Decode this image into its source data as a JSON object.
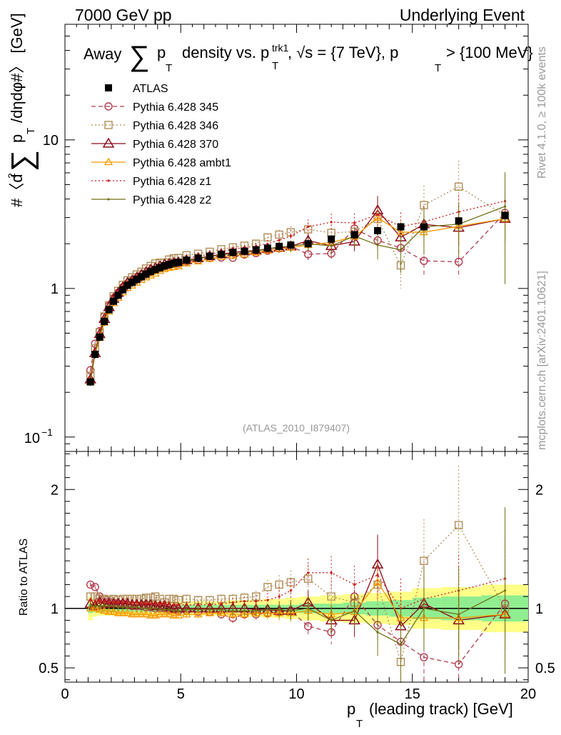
{
  "header": {
    "left": "7000 GeV pp",
    "right": "Underlying Event"
  },
  "side": {
    "rivet": "Rivet 4.1.0, ≥ 100k events",
    "mcplots": "mcplots.cern.ch [arXiv:2401.10621]"
  },
  "watermark": "(ATLAS_2010_I879407)",
  "colors": {
    "atlas": "#000000",
    "p345": "#b03a4e",
    "p346": "#b08d57",
    "p370": "#8b0a1a",
    "ambt1": "#f59a00",
    "z1": "#cc1a1a",
    "z2": "#727216",
    "band_inner": "#90ee90",
    "band_outer": "#ffff88"
  },
  "chart_data": {
    "type": "scatter",
    "title_parts": {
      "a": "Away",
      "b": "p",
      "c": "T",
      "d": "density vs. p",
      "e": "trk1",
      "f": ", √s = {7 TeV}, p",
      "g": "> {100 MeV}"
    },
    "xlabel": "p_T (leading track) [GeV]",
    "xlabel_main": "p",
    "xlabel_sub": "T",
    "xlabel_rest": "(leading track) [GeV]",
    "ylabel_parts": {
      "a": "#〈d",
      "b": "2",
      "c": "p",
      "d": "T",
      "e": "/dηdφ#〉 [GeV]"
    },
    "ratio_ylabel": "Ratio to ATLAS",
    "xlim": [
      0,
      20
    ],
    "ylim": [
      0.08,
      60
    ],
    "ratio_ylim": [
      0.38,
      2.32
    ],
    "x_ticks": [
      "0",
      "5",
      "10",
      "15",
      "20"
    ],
    "y_ticks": {
      "ten": "10",
      "one": "1",
      "tenth_base": "10",
      "tenth_exp": "−1"
    },
    "ratio_ticks": [
      "0.5",
      "1",
      "2"
    ],
    "x": [
      1.1,
      1.3,
      1.5,
      1.7,
      1.9,
      2.1,
      2.3,
      2.5,
      2.7,
      2.9,
      3.1,
      3.3,
      3.5,
      3.7,
      3.9,
      4.1,
      4.3,
      4.5,
      4.7,
      4.9,
      5.25,
      5.75,
      6.25,
      6.75,
      7.25,
      7.75,
      8.25,
      8.75,
      9.25,
      9.75,
      10.5,
      11.5,
      12.5,
      13.5,
      14.5,
      15.5,
      17.0,
      19.0
    ],
    "series": [
      {
        "name": "ATLAS",
        "key": "atlas",
        "style": "data",
        "values": [
          0.235,
          0.36,
          0.47,
          0.6,
          0.72,
          0.82,
          0.9,
          0.98,
          1.05,
          1.1,
          1.15,
          1.2,
          1.25,
          1.3,
          1.34,
          1.38,
          1.42,
          1.45,
          1.48,
          1.5,
          1.55,
          1.6,
          1.65,
          1.7,
          1.75,
          1.78,
          1.82,
          1.87,
          1.92,
          1.96,
          2.0,
          2.15,
          2.3,
          2.45,
          2.6,
          2.6,
          2.85,
          3.1
        ],
        "band_inner": [
          0.96,
          0.97,
          0.97,
          0.97,
          0.97,
          0.97,
          0.97,
          0.97,
          0.97,
          0.97,
          0.97,
          0.97,
          0.97,
          0.97,
          0.97,
          0.97,
          0.97,
          0.97,
          0.97,
          0.97,
          0.97,
          0.97,
          0.97,
          0.97,
          0.97,
          0.97,
          0.97,
          0.97,
          0.97,
          0.97,
          0.96,
          0.96,
          0.95,
          0.94,
          0.93,
          0.91,
          0.9,
          0.89
        ],
        "band_outer": [
          0.9,
          0.93,
          0.94,
          0.94,
          0.94,
          0.94,
          0.94,
          0.94,
          0.94,
          0.94,
          0.94,
          0.94,
          0.94,
          0.94,
          0.94,
          0.94,
          0.94,
          0.94,
          0.94,
          0.94,
          0.94,
          0.94,
          0.94,
          0.94,
          0.93,
          0.93,
          0.93,
          0.92,
          0.92,
          0.91,
          0.9,
          0.89,
          0.88,
          0.87,
          0.86,
          0.83,
          0.82,
          0.8
        ]
      },
      {
        "name": "Pythia 6.428 345",
        "key": "p345",
        "style": "circle-dashed",
        "ratio": [
          1.2,
          1.18,
          1.1,
          1.08,
          1.06,
          1.05,
          1.04,
          1.04,
          1.03,
          1.02,
          1.02,
          1.02,
          1.01,
          1.01,
          1.0,
          1.0,
          1.0,
          0.99,
          0.99,
          0.98,
          0.98,
          0.97,
          0.97,
          0.95,
          0.92,
          0.95,
          0.95,
          0.96,
          0.97,
          0.98,
          0.85,
          0.8,
          1.1,
          0.86,
          0.72,
          0.59,
          0.53,
          1.04
        ],
        "ratio_err": [
          0.02,
          0.02,
          0.02,
          0.02,
          0.02,
          0.02,
          0.02,
          0.02,
          0.02,
          0.02,
          0.02,
          0.02,
          0.02,
          0.02,
          0.02,
          0.02,
          0.02,
          0.02,
          0.02,
          0.02,
          0.03,
          0.03,
          0.03,
          0.03,
          0.04,
          0.04,
          0.05,
          0.05,
          0.06,
          0.07,
          0.09,
          0.1,
          0.12,
          0.15,
          0.17,
          0.2,
          0.22,
          0.3
        ]
      },
      {
        "name": "Pythia 6.428 346",
        "key": "p346",
        "style": "square-dotted",
        "ratio": [
          1.1,
          1.1,
          1.08,
          1.08,
          1.07,
          1.08,
          1.07,
          1.08,
          1.08,
          1.08,
          1.08,
          1.08,
          1.09,
          1.09,
          1.1,
          1.08,
          1.05,
          1.08,
          1.08,
          1.07,
          1.08,
          1.07,
          1.07,
          1.08,
          1.08,
          1.09,
          1.1,
          1.18,
          1.2,
          1.22,
          1.25,
          1.1,
          1.05,
          1.2,
          0.55,
          1.4,
          1.7,
          1.0
        ],
        "ratio_err": [
          0.02,
          0.02,
          0.02,
          0.02,
          0.02,
          0.02,
          0.02,
          0.02,
          0.02,
          0.02,
          0.02,
          0.02,
          0.02,
          0.02,
          0.02,
          0.02,
          0.02,
          0.02,
          0.02,
          0.02,
          0.03,
          0.03,
          0.03,
          0.03,
          0.04,
          0.04,
          0.05,
          0.06,
          0.08,
          0.1,
          0.12,
          0.14,
          0.16,
          0.2,
          0.3,
          0.35,
          0.5,
          0.45
        ]
      },
      {
        "name": "Pythia 6.428 370",
        "key": "p370",
        "style": "triangle-solid",
        "ratio": [
          1.04,
          1.02,
          1.05,
          1.04,
          1.04,
          1.04,
          1.04,
          1.04,
          1.04,
          1.03,
          1.03,
          1.03,
          1.03,
          1.03,
          1.02,
          1.02,
          1.02,
          1.01,
          1.0,
          1.0,
          1.0,
          1.0,
          1.0,
          1.0,
          1.0,
          1.0,
          0.99,
          0.99,
          0.98,
          0.98,
          1.05,
          0.9,
          0.9,
          1.37,
          0.85,
          1.04,
          0.9,
          0.95
        ],
        "ratio_err": [
          0.02,
          0.02,
          0.02,
          0.02,
          0.02,
          0.02,
          0.02,
          0.02,
          0.02,
          0.02,
          0.02,
          0.02,
          0.02,
          0.02,
          0.02,
          0.02,
          0.02,
          0.02,
          0.02,
          0.02,
          0.03,
          0.03,
          0.03,
          0.03,
          0.04,
          0.04,
          0.05,
          0.05,
          0.06,
          0.07,
          0.1,
          0.12,
          0.14,
          0.25,
          0.2,
          0.25,
          0.25,
          0.3
        ]
      },
      {
        "name": "Pythia 6.428 ambt1",
        "key": "ambt1",
        "style": "triangle-solid-small",
        "ratio": [
          1.0,
          1.0,
          0.99,
          0.98,
          0.97,
          0.97,
          0.96,
          0.96,
          0.96,
          0.95,
          0.95,
          0.95,
          0.95,
          0.94,
          0.94,
          0.95,
          0.95,
          0.95,
          0.94,
          0.94,
          0.95,
          0.95,
          0.96,
          0.96,
          0.95,
          0.95,
          0.96,
          0.96,
          0.96,
          0.96,
          0.98,
          0.95,
          0.97,
          1.22,
          0.92,
          0.92,
          0.92,
          0.95
        ],
        "ratio_err": [
          0.02,
          0.02,
          0.02,
          0.02,
          0.02,
          0.02,
          0.02,
          0.02,
          0.02,
          0.02,
          0.02,
          0.02,
          0.02,
          0.02,
          0.02,
          0.02,
          0.02,
          0.02,
          0.02,
          0.02,
          0.03,
          0.03,
          0.03,
          0.03,
          0.04,
          0.04,
          0.05,
          0.05,
          0.06,
          0.07,
          0.09,
          0.1,
          0.12,
          0.15,
          0.18,
          0.2,
          0.22,
          0.3
        ]
      },
      {
        "name": "Pythia 6.428 z1",
        "key": "z1",
        "style": "dot-dotted",
        "ratio": [
          1.07,
          1.06,
          1.06,
          1.06,
          1.05,
          1.05,
          1.05,
          1.05,
          1.05,
          1.05,
          1.05,
          1.04,
          1.04,
          1.04,
          1.04,
          1.04,
          1.04,
          1.04,
          1.03,
          1.03,
          1.03,
          1.03,
          1.03,
          1.04,
          1.05,
          1.06,
          1.06,
          1.07,
          1.1,
          1.15,
          1.3,
          1.3,
          1.2,
          1.28,
          1.0,
          1.08,
          1.15,
          1.25
        ],
        "ratio_err": [
          0.02,
          0.02,
          0.02,
          0.02,
          0.02,
          0.02,
          0.02,
          0.02,
          0.02,
          0.02,
          0.02,
          0.02,
          0.02,
          0.02,
          0.02,
          0.02,
          0.02,
          0.02,
          0.02,
          0.02,
          0.03,
          0.03,
          0.03,
          0.03,
          0.04,
          0.04,
          0.05,
          0.06,
          0.08,
          0.1,
          0.12,
          0.14,
          0.16,
          0.2,
          0.25,
          0.28,
          0.3,
          0.35
        ]
      },
      {
        "name": "Pythia 6.428 z2",
        "key": "z2",
        "style": "dot-solid",
        "ratio": [
          1.02,
          1.02,
          1.02,
          1.02,
          1.02,
          1.02,
          1.01,
          1.01,
          1.01,
          1.01,
          1.01,
          1.0,
          1.0,
          1.0,
          1.0,
          0.99,
          0.99,
          0.99,
          0.98,
          0.98,
          0.99,
          0.99,
          0.99,
          0.99,
          0.98,
          0.98,
          0.98,
          0.99,
          0.99,
          0.98,
          1.0,
          0.9,
          0.98,
          0.8,
          0.7,
          1.0,
          0.95,
          1.15
        ],
        "ratio_err": [
          0.02,
          0.02,
          0.02,
          0.02,
          0.02,
          0.02,
          0.02,
          0.02,
          0.02,
          0.02,
          0.02,
          0.02,
          0.02,
          0.02,
          0.02,
          0.02,
          0.02,
          0.02,
          0.02,
          0.02,
          0.03,
          0.03,
          0.03,
          0.03,
          0.04,
          0.04,
          0.05,
          0.05,
          0.06,
          0.08,
          0.1,
          0.12,
          0.14,
          0.2,
          0.3,
          0.35,
          0.4,
          0.7
        ]
      }
    ]
  }
}
